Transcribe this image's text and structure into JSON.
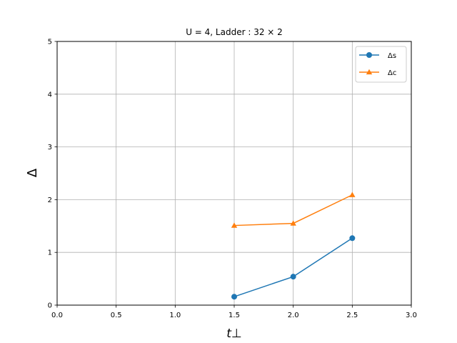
{
  "chart_data": {
    "type": "line",
    "title": "U = 4,  Ladder : 32 × 2",
    "xlabel": "t⊥",
    "ylabel": "Δ",
    "xlim": [
      0.0,
      3.0
    ],
    "ylim": [
      0,
      5
    ],
    "xticks": [
      "0.0",
      "0.5",
      "1.0",
      "1.5",
      "2.0",
      "2.5",
      "3.0"
    ],
    "yticks": [
      "0",
      "1",
      "2",
      "3",
      "4",
      "5"
    ],
    "grid": true,
    "legend_position": "top-right",
    "x": [
      1.5,
      2.0,
      2.5
    ],
    "series": [
      {
        "name": "Δs",
        "values": [
          0.16,
          0.54,
          1.27
        ],
        "color": "#1f77b4",
        "marker": "circle"
      },
      {
        "name": "Δc",
        "values": [
          1.51,
          1.55,
          2.09
        ],
        "color": "#ff7f0e",
        "marker": "triangle"
      }
    ]
  }
}
